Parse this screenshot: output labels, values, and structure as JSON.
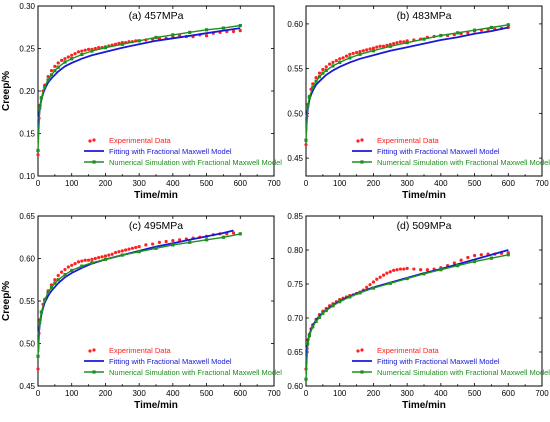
{
  "chart_data": [
    {
      "type": "line",
      "title": "(a) 457MPa",
      "xlabel": "Time/min",
      "ylabel": "Creep/%",
      "xlim": [
        0,
        700
      ],
      "ylim": [
        0.1,
        0.3
      ],
      "xticks": [
        "0",
        "100",
        "200",
        "300",
        "400",
        "500",
        "600",
        "700"
      ],
      "yticks": [
        "0.10",
        "0.15",
        "0.20",
        "0.25",
        "0.30"
      ],
      "legend_position": "bottom-right",
      "series": [
        {
          "name": "Experimental Data",
          "style": "points",
          "color": "#ff2020",
          "x": [
            0,
            3,
            6,
            10,
            15,
            20,
            30,
            40,
            50,
            60,
            70,
            80,
            90,
            100,
            110,
            120,
            130,
            140,
            150,
            160,
            170,
            180,
            190,
            200,
            210,
            220,
            230,
            240,
            250,
            260,
            270,
            280,
            290,
            300,
            320,
            340,
            360,
            380,
            400,
            420,
            440,
            460,
            480,
            500,
            520,
            540,
            560,
            580,
            600
          ],
          "y": [
            0.125,
            0.168,
            0.183,
            0.192,
            0.2,
            0.207,
            0.217,
            0.224,
            0.229,
            0.233,
            0.236,
            0.238,
            0.24,
            0.242,
            0.244,
            0.246,
            0.247,
            0.248,
            0.249,
            0.249,
            0.25,
            0.251,
            0.251,
            0.252,
            0.253,
            0.254,
            0.255,
            0.256,
            0.257,
            0.257,
            0.258,
            0.258,
            0.259,
            0.259,
            0.26,
            0.261,
            0.262,
            0.262,
            0.263,
            0.265,
            0.264,
            0.264,
            0.266,
            0.265,
            0.268,
            0.269,
            0.27,
            0.27,
            0.271
          ]
        },
        {
          "name": "Fitting with Fractional Maxwell Model",
          "style": "line",
          "color": "#1818d8",
          "x": [
            1,
            3,
            6,
            10,
            15,
            20,
            30,
            40,
            60,
            80,
            100,
            130,
            160,
            200,
            250,
            300,
            350,
            400,
            450,
            500,
            550,
            600
          ],
          "y": [
            0.15,
            0.17,
            0.181,
            0.19,
            0.197,
            0.202,
            0.21,
            0.215,
            0.223,
            0.229,
            0.233,
            0.238,
            0.242,
            0.246,
            0.251,
            0.255,
            0.259,
            0.262,
            0.265,
            0.268,
            0.271,
            0.274
          ]
        },
        {
          "name": "Numerical Simulation with Fractional Maxwell Model",
          "style": "line-markers",
          "color": "#1f8f1f",
          "x": [
            0,
            5,
            10,
            20,
            30,
            40,
            50,
            60,
            80,
            100,
            130,
            160,
            200,
            250,
            300,
            350,
            400,
            450,
            500,
            550,
            600
          ],
          "y": [
            0.13,
            0.18,
            0.192,
            0.205,
            0.213,
            0.219,
            0.224,
            0.228,
            0.234,
            0.238,
            0.243,
            0.247,
            0.251,
            0.255,
            0.259,
            0.263,
            0.266,
            0.269,
            0.272,
            0.274,
            0.277
          ]
        }
      ]
    },
    {
      "type": "line",
      "title": "(b) 483MPa",
      "xlabel": "Time/min",
      "ylabel": "",
      "xlim": [
        0,
        700
      ],
      "ylim": [
        0.43,
        0.62
      ],
      "xticks": [
        "0",
        "100",
        "200",
        "300",
        "400",
        "500",
        "600",
        "700"
      ],
      "yticks": [
        "0.45",
        "0.50",
        "0.55",
        "0.60"
      ],
      "legend_position": "bottom-right",
      "series": [
        {
          "name": "Experimental Data",
          "style": "points",
          "color": "#ff2020",
          "x": [
            0,
            3,
            6,
            10,
            15,
            20,
            30,
            40,
            50,
            60,
            70,
            80,
            90,
            100,
            110,
            120,
            130,
            140,
            150,
            160,
            170,
            180,
            190,
            200,
            210,
            220,
            230,
            240,
            250,
            260,
            270,
            280,
            290,
            300,
            320,
            340,
            360,
            380,
            400,
            420,
            440,
            460,
            480,
            500,
            520,
            540,
            560,
            580,
            600
          ],
          "y": [
            0.465,
            0.497,
            0.51,
            0.519,
            0.527,
            0.533,
            0.54,
            0.545,
            0.549,
            0.552,
            0.555,
            0.557,
            0.559,
            0.561,
            0.562,
            0.564,
            0.566,
            0.567,
            0.568,
            0.569,
            0.57,
            0.571,
            0.572,
            0.573,
            0.574,
            0.575,
            0.575,
            0.576,
            0.577,
            0.578,
            0.579,
            0.58,
            0.58,
            0.581,
            0.582,
            0.583,
            0.585,
            0.586,
            0.587,
            0.587,
            0.588,
            0.589,
            0.59,
            0.592,
            0.593,
            0.594,
            0.594,
            0.595,
            0.596
          ]
        },
        {
          "name": "Fitting with Fractional Maxwell Model",
          "style": "line",
          "color": "#1818d8",
          "x": [
            1,
            3,
            6,
            10,
            15,
            20,
            30,
            40,
            60,
            80,
            100,
            130,
            160,
            200,
            250,
            300,
            350,
            400,
            450,
            500,
            550,
            600
          ],
          "y": [
            0.48,
            0.497,
            0.507,
            0.515,
            0.521,
            0.525,
            0.532,
            0.536,
            0.543,
            0.548,
            0.552,
            0.557,
            0.561,
            0.565,
            0.57,
            0.574,
            0.578,
            0.582,
            0.585,
            0.589,
            0.592,
            0.596
          ]
        },
        {
          "name": "Numerical Simulation with Fractional Maxwell Model",
          "style": "line-markers",
          "color": "#1f8f1f",
          "x": [
            0,
            5,
            10,
            20,
            30,
            40,
            50,
            60,
            80,
            100,
            130,
            160,
            200,
            250,
            300,
            350,
            400,
            450,
            500,
            550,
            600
          ],
          "y": [
            0.47,
            0.508,
            0.518,
            0.529,
            0.536,
            0.541,
            0.545,
            0.548,
            0.553,
            0.557,
            0.562,
            0.566,
            0.57,
            0.575,
            0.579,
            0.583,
            0.587,
            0.59,
            0.593,
            0.596,
            0.599
          ]
        }
      ]
    },
    {
      "type": "line",
      "title": "(c) 495MPa",
      "xlabel": "Time/min",
      "ylabel": "Creep/%",
      "xlim": [
        0,
        700
      ],
      "ylim": [
        0.45,
        0.65
      ],
      "xticks": [
        "0",
        "100",
        "200",
        "300",
        "400",
        "500",
        "600",
        "700"
      ],
      "yticks": [
        "0.45",
        "0.50",
        "0.55",
        "0.60",
        "0.65"
      ],
      "legend_position": "bottom-right",
      "series": [
        {
          "name": "Experimental Data",
          "style": "points",
          "color": "#ff2020",
          "x": [
            0,
            3,
            6,
            10,
            15,
            20,
            30,
            40,
            50,
            60,
            70,
            80,
            90,
            100,
            110,
            120,
            130,
            140,
            150,
            160,
            170,
            180,
            190,
            200,
            210,
            220,
            230,
            240,
            250,
            260,
            270,
            280,
            290,
            300,
            320,
            340,
            360,
            380,
            400,
            420,
            440,
            460,
            480,
            500,
            520,
            540,
            560,
            580
          ],
          "y": [
            0.47,
            0.512,
            0.528,
            0.537,
            0.546,
            0.552,
            0.562,
            0.569,
            0.575,
            0.58,
            0.584,
            0.587,
            0.59,
            0.592,
            0.594,
            0.596,
            0.597,
            0.598,
            0.598,
            0.599,
            0.6,
            0.601,
            0.602,
            0.603,
            0.604,
            0.605,
            0.607,
            0.608,
            0.609,
            0.61,
            0.611,
            0.612,
            0.613,
            0.614,
            0.616,
            0.617,
            0.619,
            0.62,
            0.621,
            0.622,
            0.623,
            0.624,
            0.625,
            0.626,
            0.628,
            0.629,
            0.629,
            0.63
          ]
        },
        {
          "name": "Fitting with Fractional Maxwell Model",
          "style": "line",
          "color": "#1818d8",
          "x": [
            1,
            3,
            6,
            10,
            15,
            20,
            30,
            40,
            60,
            80,
            100,
            130,
            160,
            200,
            250,
            300,
            350,
            400,
            450,
            500,
            550,
            580
          ],
          "y": [
            0.49,
            0.513,
            0.525,
            0.534,
            0.542,
            0.548,
            0.556,
            0.562,
            0.571,
            0.578,
            0.583,
            0.589,
            0.594,
            0.599,
            0.604,
            0.609,
            0.614,
            0.618,
            0.622,
            0.626,
            0.63,
            0.633
          ]
        },
        {
          "name": "Numerical Simulation with Fractional Maxwell Model",
          "style": "line-markers",
          "color": "#1f8f1f",
          "x": [
            0,
            5,
            10,
            20,
            30,
            40,
            50,
            60,
            80,
            100,
            130,
            160,
            200,
            250,
            300,
            350,
            400,
            450,
            500,
            550,
            600
          ],
          "y": [
            0.485,
            0.525,
            0.537,
            0.551,
            0.56,
            0.566,
            0.571,
            0.575,
            0.581,
            0.586,
            0.591,
            0.595,
            0.599,
            0.604,
            0.608,
            0.612,
            0.616,
            0.619,
            0.622,
            0.625,
            0.629
          ]
        }
      ]
    },
    {
      "type": "line",
      "title": "(d) 509MPa",
      "xlabel": "Time/min",
      "ylabel": "",
      "xlim": [
        0,
        700
      ],
      "ylim": [
        0.6,
        0.85
      ],
      "xticks": [
        "0",
        "100",
        "200",
        "300",
        "400",
        "500",
        "600",
        "700"
      ],
      "yticks": [
        "0.60",
        "0.65",
        "0.70",
        "0.75",
        "0.80",
        "0.85"
      ],
      "legend_position": "bottom-right",
      "series": [
        {
          "name": "Experimental Data",
          "style": "points",
          "color": "#ff2020",
          "x": [
            0,
            3,
            6,
            10,
            15,
            20,
            30,
            40,
            50,
            60,
            70,
            80,
            90,
            100,
            110,
            120,
            130,
            140,
            150,
            160,
            170,
            180,
            190,
            200,
            210,
            220,
            230,
            240,
            250,
            260,
            270,
            280,
            290,
            300,
            320,
            340,
            360,
            380,
            400,
            420,
            440,
            460,
            480,
            500,
            520,
            540,
            560,
            580,
            600
          ],
          "y": [
            0.625,
            0.655,
            0.668,
            0.676,
            0.684,
            0.69,
            0.698,
            0.705,
            0.71,
            0.714,
            0.718,
            0.721,
            0.724,
            0.727,
            0.729,
            0.731,
            0.733,
            0.734,
            0.736,
            0.738,
            0.741,
            0.745,
            0.749,
            0.753,
            0.757,
            0.76,
            0.763,
            0.766,
            0.768,
            0.77,
            0.771,
            0.772,
            0.772,
            0.773,
            0.772,
            0.771,
            0.771,
            0.772,
            0.774,
            0.777,
            0.781,
            0.785,
            0.789,
            0.792,
            0.793,
            0.794,
            0.794,
            0.795,
            0.796
          ]
        },
        {
          "name": "Fitting with Fractional Maxwell Model",
          "style": "line",
          "color": "#1818d8",
          "x": [
            1,
            3,
            6,
            10,
            15,
            20,
            30,
            40,
            60,
            80,
            100,
            130,
            160,
            200,
            250,
            300,
            350,
            400,
            450,
            500,
            550,
            600
          ],
          "y": [
            0.635,
            0.655,
            0.666,
            0.675,
            0.683,
            0.689,
            0.697,
            0.703,
            0.712,
            0.719,
            0.725,
            0.732,
            0.738,
            0.745,
            0.752,
            0.759,
            0.766,
            0.772,
            0.779,
            0.786,
            0.793,
            0.8
          ]
        },
        {
          "name": "Numerical Simulation with Fractional Maxwell Model",
          "style": "line-markers",
          "color": "#1f8f1f",
          "x": [
            0,
            5,
            10,
            20,
            30,
            40,
            50,
            60,
            80,
            100,
            130,
            160,
            200,
            250,
            300,
            350,
            400,
            450,
            500,
            550,
            600
          ],
          "y": [
            0.61,
            0.662,
            0.674,
            0.687,
            0.695,
            0.701,
            0.707,
            0.711,
            0.718,
            0.724,
            0.731,
            0.737,
            0.744,
            0.751,
            0.758,
            0.765,
            0.771,
            0.777,
            0.783,
            0.788,
            0.793
          ]
        }
      ]
    }
  ]
}
